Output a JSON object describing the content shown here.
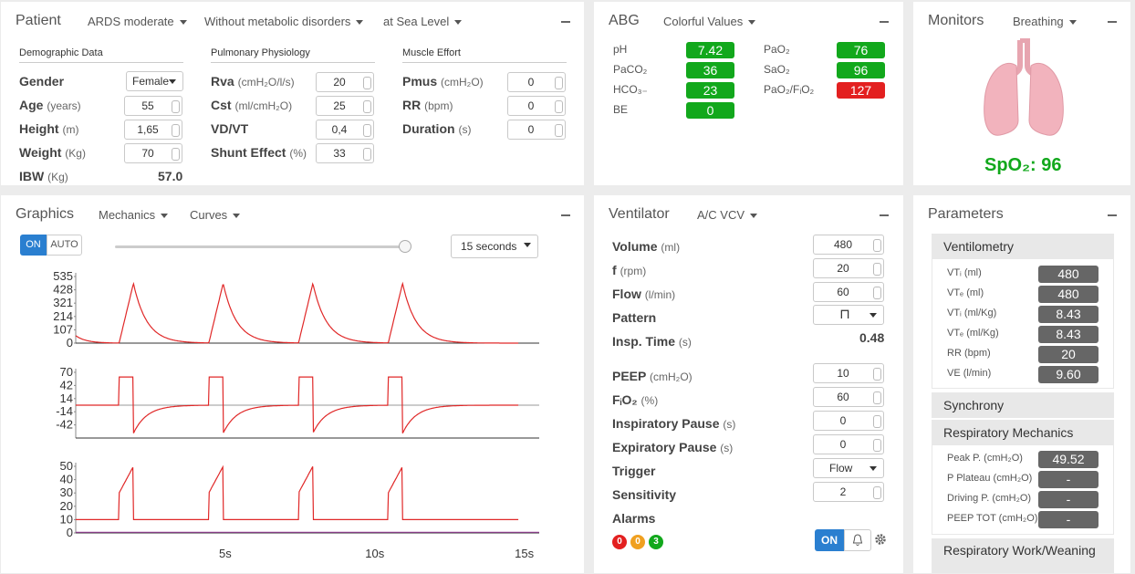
{
  "patient": {
    "title": "Patient",
    "dropdowns": [
      "ARDS moderate",
      "Without metabolic disorders",
      "at Sea Level"
    ],
    "demo": {
      "header": "Demographic Data",
      "gender_label": "Gender",
      "gender": "Female",
      "age_label": "Age",
      "age_unit": "(years)",
      "age": "55",
      "height_label": "Height",
      "height_unit": "(m)",
      "height": "1,65",
      "weight_label": "Weight",
      "weight_unit": "(Kg)",
      "weight": "70",
      "ibw_label": "IBW",
      "ibw_unit": "(Kg)",
      "ibw": "57.0"
    },
    "pulm": {
      "header": "Pulmonary Physiology",
      "rva_label": "Rva",
      "rva_unit": "(cmH₂O/l/s)",
      "rva": "20",
      "cst_label": "Cst",
      "cst_unit": "(ml/cmH₂O)",
      "cst": "25",
      "vdvt_label": "VD/VT",
      "vdvt": "0,4",
      "shunt_label": "Shunt Effect",
      "shunt_unit": "(%)",
      "shunt": "33"
    },
    "muscle": {
      "header": "Muscle Effort",
      "pmus_label": "Pmus",
      "pmus_unit": "(cmH₂O)",
      "pmus": "0",
      "rr_label": "RR",
      "rr_unit": "(bpm)",
      "rr": "0",
      "dur_label": "Duration",
      "dur_unit": "(s)",
      "dur": "0"
    }
  },
  "abg": {
    "title": "ABG",
    "dropdown": "Colorful Values",
    "left": [
      {
        "label": "pH",
        "value": "7.42",
        "status": "green"
      },
      {
        "label": "PaCO₂",
        "value": "36",
        "status": "green"
      },
      {
        "label": "HCO₃₋",
        "value": "23",
        "status": "green"
      },
      {
        "label": "BE",
        "value": "0",
        "status": "green"
      }
    ],
    "right": [
      {
        "label": "PaO₂",
        "value": "76",
        "status": "green"
      },
      {
        "label": "SaO₂",
        "value": "96",
        "status": "green"
      },
      {
        "label": "PaO₂/FᵢO₂",
        "value": "127",
        "status": "red"
      }
    ],
    "colors": {
      "green": "#12a81c",
      "red": "#e32020"
    }
  },
  "monitors": {
    "title": "Monitors",
    "dropdown": "Breathing",
    "spo2_label": "SpO₂: 96",
    "color": "#12a81c"
  },
  "graphics": {
    "title": "Graphics",
    "dropdowns": [
      "Mechanics",
      "Curves"
    ],
    "on": "ON",
    "auto": "AUTO",
    "time_select": "15 seconds",
    "xticks": [
      "5s",
      "10s",
      "15s"
    ]
  },
  "chart_data": [
    {
      "type": "line",
      "name": "volume",
      "yticks": [
        "535",
        "428",
        "321",
        "214",
        "107",
        "0"
      ],
      "ylim": [
        0,
        535
      ]
    },
    {
      "type": "line",
      "name": "flow",
      "yticks": [
        "70",
        "42",
        "14",
        "-14",
        "-42"
      ],
      "ylim": [
        -70,
        70
      ]
    },
    {
      "type": "line",
      "name": "pressure",
      "yticks": [
        "50",
        "40",
        "30",
        "20",
        "10",
        "0"
      ],
      "ylim": [
        0,
        50
      ]
    }
  ],
  "ventilator": {
    "title": "Ventilator",
    "dropdown": "A/C VCV",
    "volume_label": "Volume",
    "volume_unit": "(ml)",
    "volume": "480",
    "f_label": "f",
    "f_unit": "(rpm)",
    "f": "20",
    "flow_label": "Flow",
    "flow_unit": "(l/min)",
    "flow": "60",
    "pattern_label": "Pattern",
    "pattern": "⊓",
    "insp_label": "Insp. Time",
    "insp_unit": "(s)",
    "insp": "0.48",
    "peep_label": "PEEP",
    "peep_unit": "(cmH₂O)",
    "peep": "10",
    "fio2_label": "FᵢO₂",
    "fio2_unit": "(%)",
    "fio2": "60",
    "ip_label": "Inspiratory Pause",
    "ip_unit": "(s)",
    "ip": "0",
    "ep_label": "Expiratory Pause",
    "ep_unit": "(s)",
    "ep": "0",
    "trigger_label": "Trigger",
    "trigger": "Flow",
    "sens_label": "Sensitivity",
    "sens": "2",
    "alarms_label": "Alarms",
    "alarm_counts": [
      "0",
      "0",
      "3"
    ],
    "alarm_colors": [
      "#e32020",
      "#f0a020",
      "#12a81c"
    ],
    "on": "ON"
  },
  "parameters": {
    "title": "Parameters",
    "venti_header": "Ventilometry",
    "venti": [
      {
        "label": "VTᵢ (ml)",
        "value": "480"
      },
      {
        "label": "VTₑ (ml)",
        "value": "480"
      },
      {
        "label": "VTᵢ (ml/Kg)",
        "value": "8.43"
      },
      {
        "label": "VTₑ (ml/Kg)",
        "value": "8.43"
      },
      {
        "label": "RR (bpm)",
        "value": "20"
      },
      {
        "label": "VE (l/min)",
        "value": "9.60"
      }
    ],
    "sync_header": "Synchrony",
    "mech_header": "Respiratory Mechanics",
    "mech": [
      {
        "label": "Peak P. (cmH₂O)",
        "value": "49.52"
      },
      {
        "label": "P Plateau (cmH₂O)",
        "value": "-"
      },
      {
        "label": "Driving P. (cmH₂O)",
        "value": "-"
      },
      {
        "label": "PEEP TOT (cmH₂O)",
        "value": "-"
      }
    ],
    "work_header": "Respiratory Work/Weaning"
  }
}
